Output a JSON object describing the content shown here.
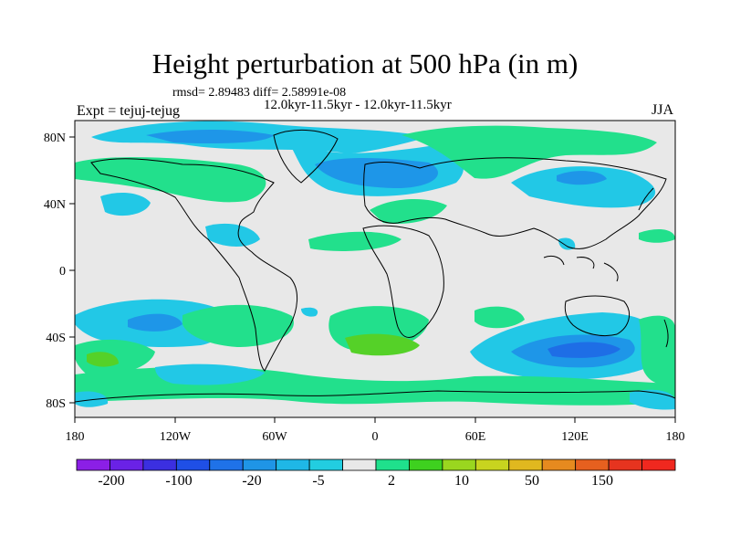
{
  "figure": {
    "title": "Height perturbation at 500 hPa (in m)",
    "stats": "rmsd= 2.89483 diff= 2.58991e-08",
    "period": "12.0kyr-11.5kyr - 12.0kyr-11.5kyr",
    "experiment": "Expt = tejuj-tejug",
    "season": "JJA"
  },
  "axes": {
    "lon_ticks": [
      "180",
      "120W",
      "60W",
      "0",
      "60E",
      "120E",
      "180"
    ],
    "lat_ticks": [
      "80N",
      "40N",
      "0",
      "40S",
      "80S"
    ]
  },
  "colorbar": {
    "labels": [
      "-200",
      "-100",
      "-20",
      "-5",
      "2",
      "10",
      "50",
      "150"
    ],
    "colors": [
      "#8b1fe6",
      "#6a22e6",
      "#3b2fe0",
      "#1f4fe6",
      "#1f72e8",
      "#1f95e6",
      "#1fb7e6",
      "#22cde0",
      "#e8e8e8",
      "#1fe08c",
      "#3ed11f",
      "#9ad61f",
      "#c8d41f",
      "#e0b81f",
      "#e68a1f",
      "#e6601f",
      "#e6341f",
      "#f0281f"
    ]
  },
  "colors": {
    "land_background": "#e8e8e8",
    "positive_weak": "#22e08c",
    "positive_mid": "#55d128",
    "negative_weak": "#22c8e6",
    "negative_mid": "#1e96e8",
    "negative_strong": "#1e6ee6"
  }
}
